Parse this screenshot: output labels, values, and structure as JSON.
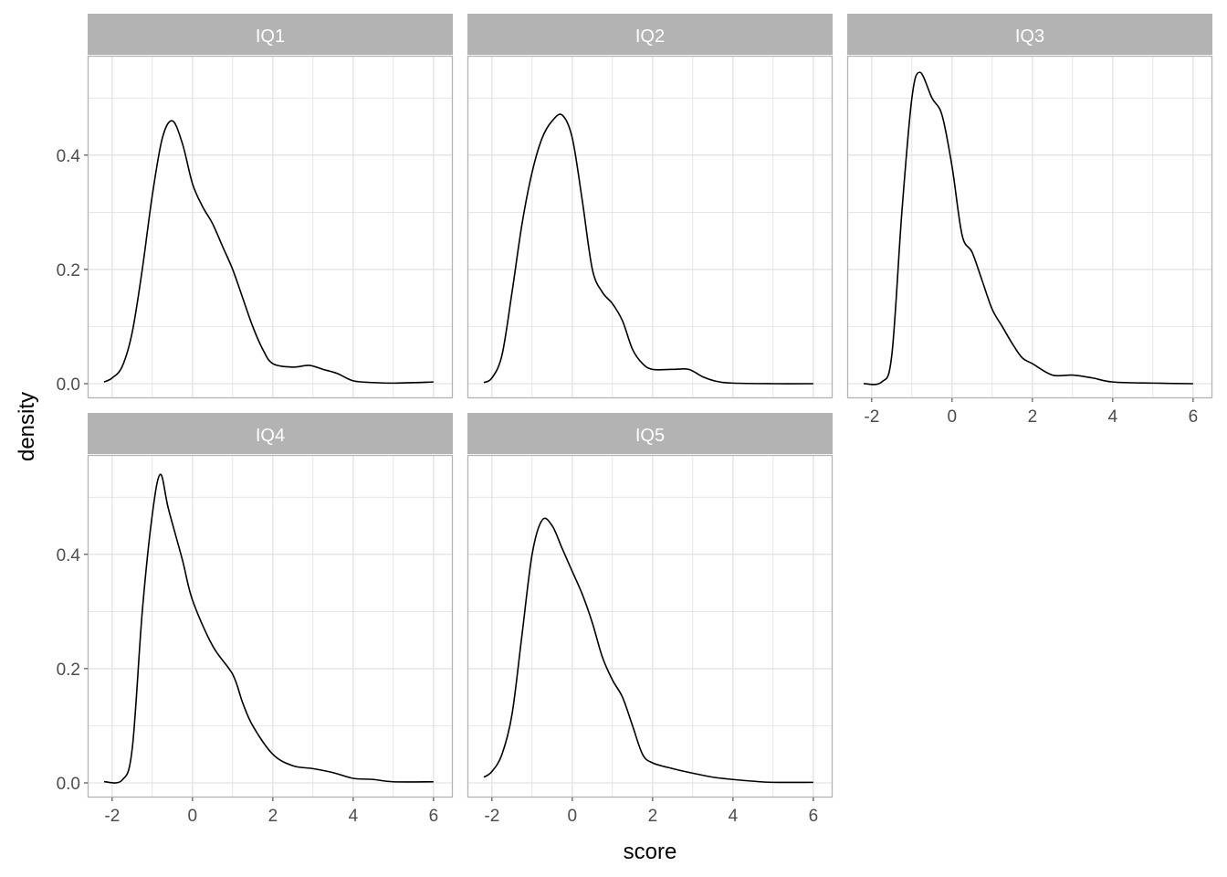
{
  "chart_data": {
    "type": "line",
    "xlabel": "score",
    "ylabel": "density",
    "xlim": [
      -2.61,
      6.48
    ],
    "ylim": [
      -0.0256,
      0.574
    ],
    "x_ticks": [
      -2,
      0,
      2,
      4,
      6
    ],
    "x_tick_labels": [
      "-2",
      "0",
      "2",
      "4",
      "6"
    ],
    "y_ticks": [
      0,
      0.2,
      0.4
    ],
    "y_tick_labels": [
      "0.0",
      "0.2",
      "0.4"
    ],
    "grid": true,
    "facets": [
      {
        "name": "IQ1",
        "x": [
          -2.2,
          -2.0,
          -1.75,
          -1.5,
          -1.25,
          -1.0,
          -0.75,
          -0.5,
          -0.25,
          0,
          0.25,
          0.5,
          0.75,
          1.0,
          1.25,
          1.5,
          1.75,
          2.0,
          2.5,
          2.9,
          3.25,
          3.6,
          4.0,
          4.5,
          5.0,
          6.0
        ],
        "y": [
          0.003,
          0.01,
          0.03,
          0.09,
          0.2,
          0.33,
          0.43,
          0.46,
          0.42,
          0.35,
          0.31,
          0.28,
          0.24,
          0.2,
          0.15,
          0.1,
          0.06,
          0.035,
          0.029,
          0.032,
          0.025,
          0.018,
          0.005,
          0.002,
          0.001,
          0.003
        ]
      },
      {
        "name": "IQ2",
        "x": [
          -2.2,
          -2.0,
          -1.75,
          -1.5,
          -1.25,
          -1.0,
          -0.75,
          -0.5,
          -0.25,
          0,
          0.25,
          0.5,
          0.75,
          1.0,
          1.25,
          1.5,
          1.75,
          2.0,
          2.5,
          2.9,
          3.25,
          3.6,
          4.0,
          5.0,
          6.0
        ],
        "y": [
          0.002,
          0.01,
          0.05,
          0.16,
          0.28,
          0.37,
          0.43,
          0.46,
          0.47,
          0.43,
          0.32,
          0.2,
          0.16,
          0.14,
          0.11,
          0.06,
          0.035,
          0.025,
          0.025,
          0.025,
          0.012,
          0.004,
          0.001,
          0,
          0
        ]
      },
      {
        "name": "IQ3",
        "x": [
          -2.2,
          -1.75,
          -1.5,
          -1.25,
          -1.0,
          -0.8,
          -0.5,
          -0.25,
          0,
          0.25,
          0.5,
          0.75,
          1.0,
          1.25,
          1.5,
          1.75,
          2.0,
          2.5,
          3.0,
          3.5,
          4.0,
          5.0,
          6.0
        ],
        "y": [
          0,
          0.003,
          0.05,
          0.3,
          0.5,
          0.545,
          0.5,
          0.47,
          0.38,
          0.26,
          0.23,
          0.18,
          0.13,
          0.1,
          0.07,
          0.045,
          0.035,
          0.015,
          0.015,
          0.01,
          0.003,
          0.001,
          0
        ]
      },
      {
        "name": "IQ4",
        "x": [
          -2.2,
          -1.75,
          -1.5,
          -1.25,
          -1.0,
          -0.8,
          -0.6,
          -0.25,
          0,
          0.5,
          1.0,
          1.25,
          1.5,
          2.0,
          2.5,
          3.0,
          3.5,
          4.0,
          4.5,
          5.0,
          6.0
        ],
        "y": [
          0.002,
          0.005,
          0.06,
          0.3,
          0.47,
          0.54,
          0.48,
          0.39,
          0.32,
          0.24,
          0.19,
          0.14,
          0.1,
          0.05,
          0.03,
          0.025,
          0.018,
          0.008,
          0.006,
          0.002,
          0.002
        ]
      },
      {
        "name": "IQ5",
        "x": [
          -2.2,
          -2.0,
          -1.75,
          -1.5,
          -1.25,
          -1.0,
          -0.75,
          -0.5,
          -0.25,
          0,
          0.25,
          0.5,
          0.75,
          1.0,
          1.25,
          1.5,
          1.75,
          2.0,
          2.5,
          3.0,
          3.5,
          4.0,
          4.5,
          5.0,
          6.0
        ],
        "y": [
          0.01,
          0.02,
          0.05,
          0.12,
          0.26,
          0.4,
          0.46,
          0.45,
          0.41,
          0.37,
          0.33,
          0.28,
          0.22,
          0.18,
          0.15,
          0.1,
          0.05,
          0.035,
          0.025,
          0.017,
          0.01,
          0.006,
          0.003,
          0.001,
          0.001
        ]
      }
    ]
  },
  "colors": {
    "strip": "#b3b3b3",
    "strip_text": "#ffffff",
    "grid": "#dedede",
    "border": "#b3b3b3",
    "line": "#000000",
    "axis_text": "#4d4d4d"
  }
}
